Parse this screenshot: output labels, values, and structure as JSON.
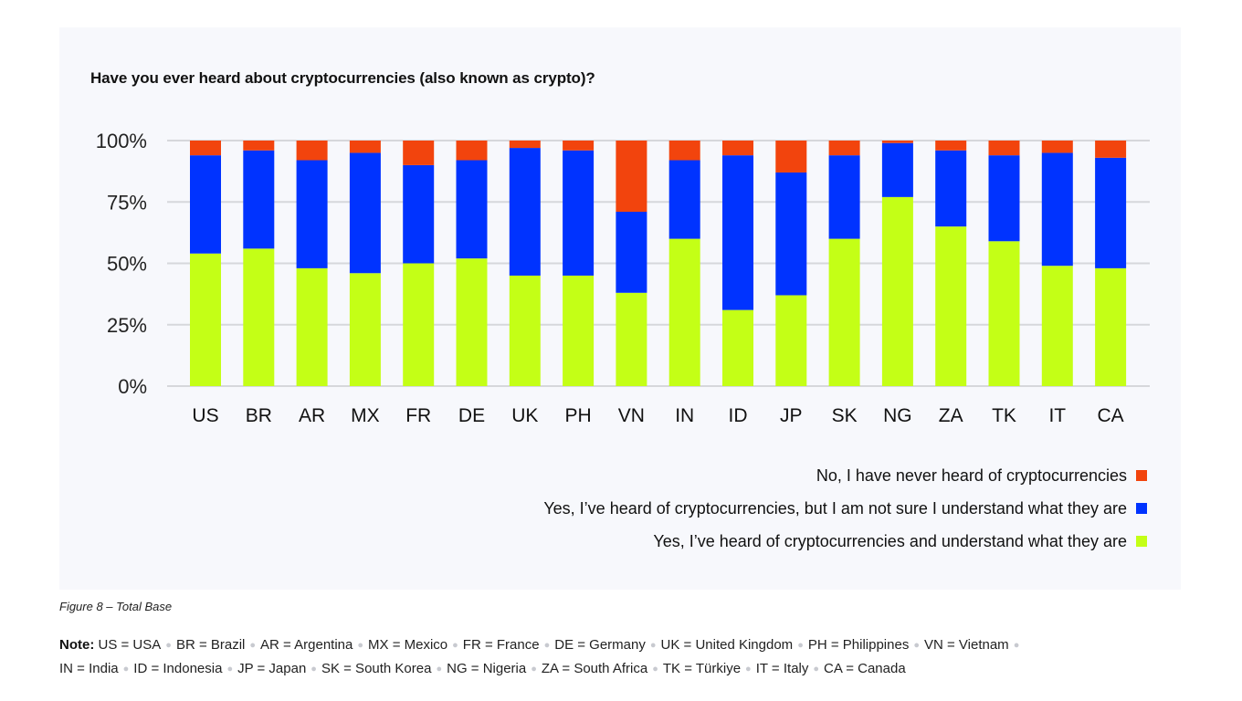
{
  "chart_data": {
    "type": "bar",
    "stacked": true,
    "title": "Have you ever heard about cryptocurrencies (also known as crypto)?",
    "xlabel": "",
    "ylabel": "",
    "ylim": [
      0,
      100
    ],
    "yticks": [
      "0%",
      "25%",
      "50%",
      "75%",
      "100%"
    ],
    "ytick_values": [
      0,
      25,
      50,
      75,
      100
    ],
    "grid": true,
    "legend_position": "bottom-right",
    "categories": [
      "US",
      "BR",
      "AR",
      "MX",
      "FR",
      "DE",
      "UK",
      "PH",
      "VN",
      "IN",
      "ID",
      "JP",
      "SK",
      "NG",
      "ZA",
      "TK",
      "IT",
      "CA"
    ],
    "series": [
      {
        "name": "Yes, I’ve heard of cryptocurrencies and understand what they are",
        "color": "#c4ff16",
        "values": [
          54,
          56,
          48,
          46,
          50,
          52,
          45,
          45,
          38,
          60,
          31,
          37,
          60,
          77,
          65,
          59,
          49,
          48
        ]
      },
      {
        "name": "Yes, I’ve heard of cryptocurrencies, but I am not sure I understand what they are",
        "color": "#0033ff",
        "values": [
          40,
          40,
          44,
          49,
          40,
          40,
          52,
          51,
          33,
          32,
          63,
          50,
          34,
          22,
          31,
          35,
          46,
          45
        ]
      },
      {
        "name": "No, I have never heard of cryptocurrencies",
        "color": "#f2440d",
        "values": [
          6,
          4,
          8,
          5,
          10,
          8,
          3,
          4,
          29,
          8,
          6,
          13,
          6,
          1,
          4,
          6,
          5,
          7
        ]
      }
    ]
  },
  "legend": [
    {
      "label": "No, I have never heard of cryptocurrencies",
      "color": "#f2440d"
    },
    {
      "label": "Yes, I’ve heard of cryptocurrencies, but I am not sure I understand what they are",
      "color": "#0033ff"
    },
    {
      "label": "Yes, I’ve heard of cryptocurrencies and understand what they are",
      "color": "#c4ff16"
    }
  ],
  "caption": "Figure 8 – Total Base",
  "note": {
    "label": "Note:",
    "line1": [
      "US = USA",
      "BR = Brazil",
      "AR = Argentina",
      "MX = Mexico",
      "FR = France",
      "DE = Germany",
      "UK = United Kingdom",
      "PH = Philippines",
      "VN = Vietnam"
    ],
    "line2": [
      "IN = India",
      "ID = Indonesia",
      "JP = Japan",
      "SK = South Korea",
      "NG = Nigeria",
      "ZA = South Africa",
      "TK = Türkiye",
      "IT = Italy",
      "CA = Canada"
    ]
  }
}
